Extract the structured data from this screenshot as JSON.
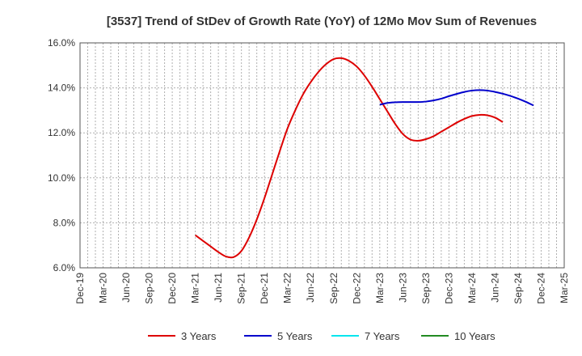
{
  "chart_data": {
    "type": "line",
    "title": "[3537]  Trend of StDev of Growth Rate (YoY) of 12Mo Mov Sum of Revenues",
    "xlabel": "",
    "ylabel": "",
    "ylim": [
      6.0,
      16.0
    ],
    "y_ticks": [
      "6.0%",
      "8.0%",
      "10.0%",
      "12.0%",
      "14.0%",
      "16.0%"
    ],
    "y_tick_values": [
      6,
      8,
      10,
      12,
      14,
      16
    ],
    "categories": [
      "Dec-19",
      "Mar-20",
      "Jun-20",
      "Sep-20",
      "Dec-20",
      "Mar-21",
      "Jun-21",
      "Sep-21",
      "Dec-21",
      "Mar-22",
      "Jun-22",
      "Sep-22",
      "Dec-22",
      "Mar-23",
      "Jun-23",
      "Sep-23",
      "Dec-23",
      "Mar-24",
      "Jun-24",
      "Sep-24",
      "Dec-24",
      "Mar-25"
    ],
    "grid": true,
    "legend_position": "bottom",
    "series": [
      {
        "name": "3 Years",
        "color": "#dd0000",
        "points": [
          {
            "x": 15,
            "y": 7.45
          },
          {
            "x": 16,
            "y": 7.2
          },
          {
            "x": 17,
            "y": 6.95
          },
          {
            "x": 18,
            "y": 6.7
          },
          {
            "x": 19,
            "y": 6.5
          },
          {
            "x": 20,
            "y": 6.48
          },
          {
            "x": 21,
            "y": 6.75
          },
          {
            "x": 22,
            "y": 7.35
          },
          {
            "x": 23,
            "y": 8.15
          },
          {
            "x": 24,
            "y": 9.1
          },
          {
            "x": 25,
            "y": 10.15
          },
          {
            "x": 26,
            "y": 11.2
          },
          {
            "x": 27,
            "y": 12.2
          },
          {
            "x": 28,
            "y": 13.0
          },
          {
            "x": 29,
            "y": 13.7
          },
          {
            "x": 30,
            "y": 14.25
          },
          {
            "x": 31,
            "y": 14.7
          },
          {
            "x": 32,
            "y": 15.05
          },
          {
            "x": 33,
            "y": 15.28
          },
          {
            "x": 34,
            "y": 15.32
          },
          {
            "x": 35,
            "y": 15.2
          },
          {
            "x": 36,
            "y": 14.95
          },
          {
            "x": 37,
            "y": 14.55
          },
          {
            "x": 38,
            "y": 14.05
          },
          {
            "x": 39,
            "y": 13.5
          },
          {
            "x": 40,
            "y": 12.95
          },
          {
            "x": 41,
            "y": 12.4
          },
          {
            "x": 42,
            "y": 11.95
          },
          {
            "x": 43,
            "y": 11.7
          },
          {
            "x": 44,
            "y": 11.65
          },
          {
            "x": 45,
            "y": 11.72
          },
          {
            "x": 46,
            "y": 11.85
          },
          {
            "x": 47,
            "y": 12.05
          },
          {
            "x": 48,
            "y": 12.25
          },
          {
            "x": 49,
            "y": 12.45
          },
          {
            "x": 50,
            "y": 12.62
          },
          {
            "x": 51,
            "y": 12.75
          },
          {
            "x": 52,
            "y": 12.8
          },
          {
            "x": 53,
            "y": 12.78
          },
          {
            "x": 54,
            "y": 12.68
          },
          {
            "x": 55,
            "y": 12.48
          }
        ]
      },
      {
        "name": "5 Years",
        "color": "#0000cc",
        "points": [
          {
            "x": 39,
            "y": 13.25
          },
          {
            "x": 40,
            "y": 13.33
          },
          {
            "x": 41,
            "y": 13.36
          },
          {
            "x": 42,
            "y": 13.37
          },
          {
            "x": 43,
            "y": 13.37
          },
          {
            "x": 44,
            "y": 13.37
          },
          {
            "x": 45,
            "y": 13.39
          },
          {
            "x": 46,
            "y": 13.44
          },
          {
            "x": 47,
            "y": 13.52
          },
          {
            "x": 48,
            "y": 13.63
          },
          {
            "x": 49,
            "y": 13.73
          },
          {
            "x": 50,
            "y": 13.82
          },
          {
            "x": 51,
            "y": 13.88
          },
          {
            "x": 52,
            "y": 13.9
          },
          {
            "x": 53,
            "y": 13.88
          },
          {
            "x": 54,
            "y": 13.82
          },
          {
            "x": 55,
            "y": 13.74
          },
          {
            "x": 56,
            "y": 13.64
          },
          {
            "x": 57,
            "y": 13.52
          },
          {
            "x": 58,
            "y": 13.38
          },
          {
            "x": 59,
            "y": 13.22
          }
        ]
      },
      {
        "name": "7 Years",
        "color": "#00e5ee",
        "points": []
      },
      {
        "name": "10 Years",
        "color": "#228b22",
        "points": []
      }
    ]
  }
}
